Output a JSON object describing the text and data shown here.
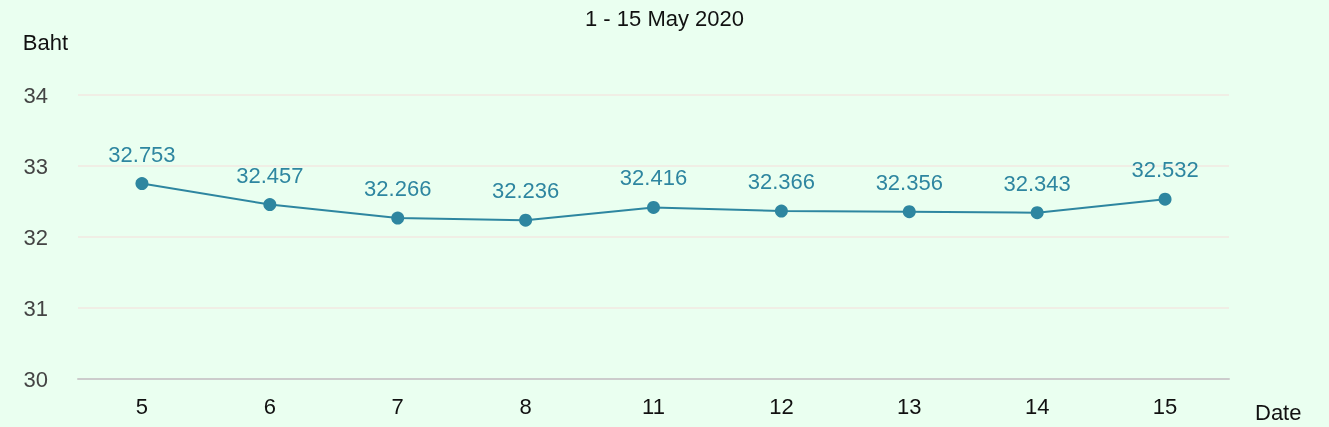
{
  "chart_data": {
    "type": "line",
    "title": "1 - 15 May 2020",
    "xlabel": "Date",
    "ylabel": "Baht",
    "categories": [
      "5",
      "6",
      "7",
      "8",
      "11",
      "12",
      "13",
      "14",
      "15"
    ],
    "series": [
      {
        "color": "#2e86a0",
        "values": [
          32.753,
          32.457,
          32.266,
          32.236,
          32.416,
          32.366,
          32.356,
          32.343,
          32.532
        ]
      }
    ],
    "ylim": [
      30,
      34
    ],
    "yticks": [
      30,
      31,
      32,
      33,
      34
    ],
    "grid": "y",
    "marker": "circle",
    "data_labels": true
  }
}
